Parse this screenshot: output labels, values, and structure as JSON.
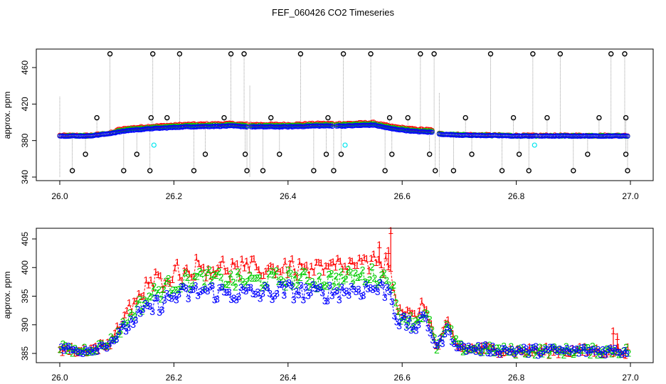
{
  "title": "FEF_060426  CO2 Timeseries",
  "colors": {
    "red": "#ff0000",
    "green": "#00cc00",
    "blue": "#0000ff",
    "black": "#000000",
    "cyan": "#00e5ee",
    "drop": "#888888"
  },
  "chart_data": [
    {
      "type": "scatter",
      "name": "top-panel",
      "xlabel": "",
      "ylabel": "approx. ppm",
      "xlim": [
        26.0,
        27.0
      ],
      "ylim": [
        340,
        475
      ],
      "xticks": [
        26.0,
        26.2,
        26.4,
        26.6,
        26.8,
        27.0
      ],
      "xtick_labels": [
        "26.0",
        "26.2",
        "26.4",
        "26.6",
        "26.8",
        "27.0"
      ],
      "yticks": [
        340,
        380,
        420,
        460
      ],
      "ytick_labels": [
        "340",
        "380",
        "420",
        "460"
      ],
      "gaps": [
        [
          26.33,
          26.333
        ],
        [
          26.478,
          26.485
        ],
        [
          26.655,
          26.665
        ],
        [
          26.836,
          26.84
        ]
      ],
      "series_profile": {
        "x": [
          26.0,
          26.05,
          26.08,
          26.12,
          26.16,
          26.22,
          26.3,
          26.33,
          26.4,
          26.45,
          26.48,
          26.5,
          26.55,
          26.58,
          26.62,
          26.655,
          26.665,
          26.7,
          26.8,
          26.95,
          27.0
        ],
        "y": [
          385,
          385,
          387,
          391,
          393,
          395,
          396,
          395,
          395,
          396,
          396,
          396,
          397,
          393,
          390,
          389,
          387,
          386,
          385,
          385,
          385
        ]
      },
      "outliers_high": [
        26.088,
        26.163,
        26.21,
        26.3,
        26.323,
        26.422,
        26.497,
        26.545,
        26.632,
        26.656,
        26.755,
        26.829,
        26.877,
        26.966,
        26.99
      ],
      "outliers_low": [
        26.022,
        26.112,
        26.158,
        26.235,
        26.328,
        26.356,
        26.445,
        26.48,
        26.57,
        26.658,
        26.69,
        26.775,
        26.822,
        26.9,
        26.995
      ],
      "outliers_mid_high": [
        26.065,
        26.16,
        26.188,
        26.288,
        26.37,
        26.47,
        26.578,
        26.61,
        26.711,
        26.795,
        26.854,
        26.945,
        26.992
      ],
      "outliers_mid_low": [
        26.045,
        26.135,
        26.255,
        26.325,
        26.385,
        26.467,
        26.493,
        26.582,
        26.648,
        26.722,
        26.805,
        26.925,
        26.992
      ],
      "outlier_values": {
        "high": 475,
        "low": 347,
        "mid_high": 405,
        "mid_low": 365
      },
      "cyan_points": [
        {
          "x": 26.165,
          "y": 375
        },
        {
          "x": 26.5,
          "y": 375
        },
        {
          "x": 26.832,
          "y": 375
        }
      ]
    },
    {
      "type": "line",
      "name": "bottom-panel",
      "xlabel": "",
      "ylabel": "approx. ppm",
      "xlim": [
        26.0,
        27.0
      ],
      "ylim": [
        384,
        406.5
      ],
      "xticks": [
        26.0,
        26.2,
        26.4,
        26.6,
        26.8,
        27.0
      ],
      "xtick_labels": [
        "26.0",
        "26.2",
        "26.4",
        "26.6",
        "26.8",
        "27.0"
      ],
      "yticks": [
        385,
        390,
        395,
        400,
        405
      ],
      "ytick_labels": [
        "385",
        "390",
        "395",
        "400",
        "405"
      ],
      "series": [
        {
          "name": "1",
          "color": "red",
          "label": "1",
          "offset": 4.0,
          "spikes": [
            {
              "x": 26.56,
              "y": 404
            },
            {
              "x": 26.576,
              "y": 403
            },
            {
              "x": 26.58,
              "y": 406.5
            },
            {
              "x": 26.97,
              "y": 389
            },
            {
              "x": 26.977,
              "y": 388
            }
          ]
        },
        {
          "name": "2",
          "color": "green",
          "label": "2",
          "offset": 2.2,
          "spikes": []
        },
        {
          "name": "3",
          "color": "blue",
          "label": "3",
          "offset": 0.0,
          "spikes": []
        }
      ],
      "profile": {
        "x": [
          26.0,
          26.03,
          26.06,
          26.08,
          26.1,
          26.13,
          26.16,
          26.2,
          26.25,
          26.3,
          26.35,
          26.4,
          26.45,
          26.5,
          26.55,
          26.58,
          26.59,
          26.62,
          26.64,
          26.65,
          26.66,
          26.68,
          26.7,
          26.8,
          26.95,
          27.0
        ],
        "y": [
          386,
          385.5,
          386,
          386.5,
          388,
          391,
          393,
          395,
          396,
          395.5,
          395.5,
          396,
          395.5,
          396,
          396.5,
          396,
          391,
          389.5,
          391,
          389,
          386,
          389,
          386,
          385.5,
          385.5,
          385.5
        ]
      }
    }
  ]
}
